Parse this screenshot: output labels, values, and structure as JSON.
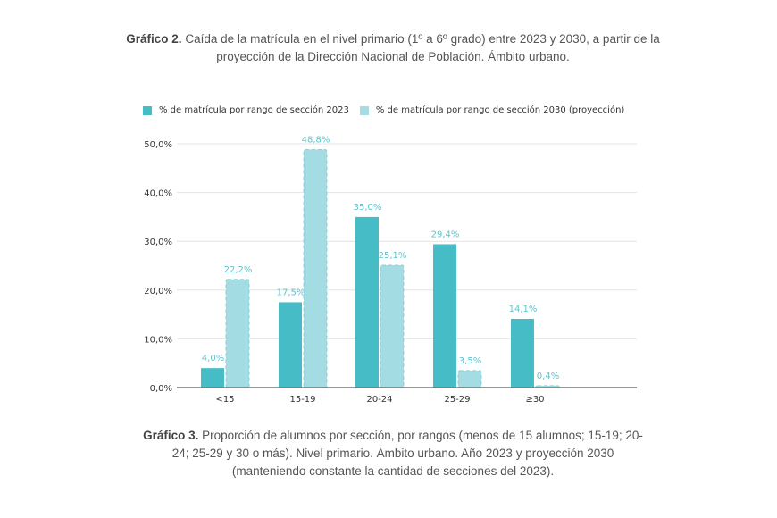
{
  "caption_top": {
    "label": "Gráfico 2.",
    "text": " Caída de la matrícula en el nivel primario (1º a 6º grado) entre 2023 y 2030, a partir de la proyección de la Dirección Nacional de Población. Ámbito urbano."
  },
  "caption_bottom": {
    "label": "Gráfico 3.",
    "text": "  Proporción de alumnos por sección, por rangos (menos de 15 alumnos; 15-19; 20-24; 25-29 y 30 o más). Nivel primario. Ámbito urbano. Año 2023 y proyección 2030 (manteniendo constante la cantidad de secciones del 2023)."
  },
  "chart_data": {
    "type": "bar",
    "categories": [
      "<15",
      "15-19",
      "20-24",
      "25-29",
      "≥30"
    ],
    "series": [
      {
        "name": "% de matrícula por rango de sección 2023",
        "values": [
          4.0,
          17.5,
          35.0,
          29.4,
          14.1
        ],
        "labels": [
          "4,0%",
          "17,5%",
          "35,0%",
          "29,4%",
          "14,1%"
        ],
        "color": "#45bcc6"
      },
      {
        "name": "% de matrícula por rango de sección 2030 (proyección)",
        "values": [
          22.2,
          48.8,
          25.1,
          3.5,
          0.4
        ],
        "labels": [
          "22,2%",
          "48,8%",
          "25,1%",
          "3,5%",
          "0,4%"
        ],
        "color": "#a3dce2"
      }
    ],
    "yticks": [
      0,
      10,
      20,
      30,
      40,
      50
    ],
    "ytick_labels": [
      "0,0%",
      "10,0%",
      "20,0%",
      "30,0%",
      "40,0%",
      "50,0%"
    ],
    "ylim": [
      0,
      50
    ],
    "grid": true,
    "legend": "top-left",
    "label_color": "#5ec3cc"
  }
}
